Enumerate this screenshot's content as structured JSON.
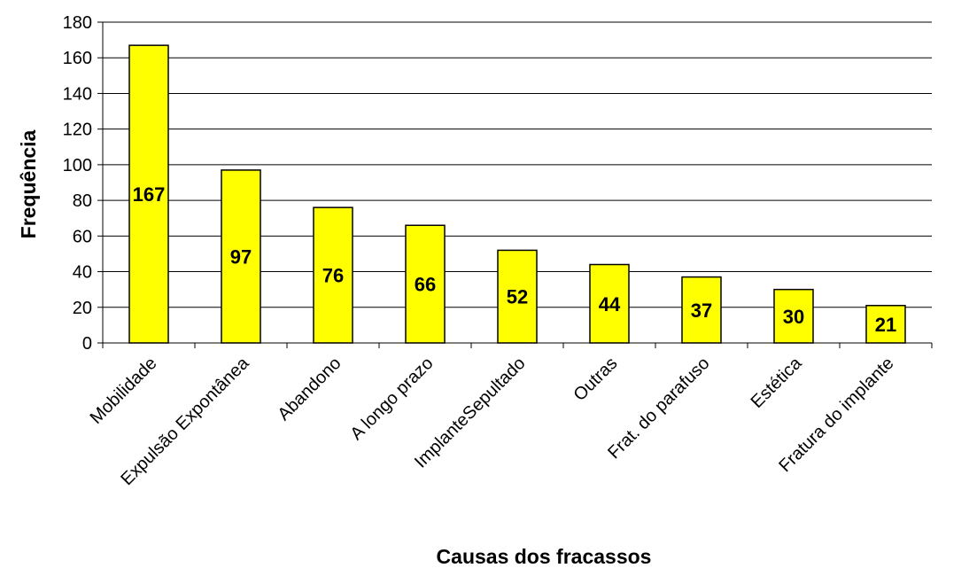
{
  "chart_data": {
    "type": "bar",
    "title": "",
    "xlabel": "Causas dos fracassos",
    "ylabel": "Frequência",
    "categories": [
      "Mobilidade",
      "Expulsão Expontânea",
      "Abandono",
      "A longo prazo",
      "ImplanteSepultado",
      "Outras",
      "Frat. do parafuso",
      "Estética",
      "Fratura do implante"
    ],
    "values": [
      167,
      97,
      76,
      66,
      52,
      44,
      37,
      30,
      21
    ],
    "ylim": [
      0,
      180
    ],
    "yticks": [
      0,
      20,
      40,
      60,
      80,
      100,
      120,
      140,
      160,
      180
    ],
    "grid": true,
    "legend": "none",
    "bar_color": "#FFFF00",
    "bar_edge_color": "#000000"
  }
}
